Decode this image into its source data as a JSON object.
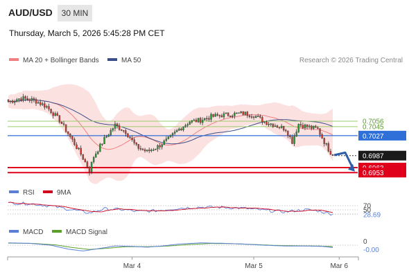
{
  "header": {
    "symbol": "AUD/USD",
    "interval": "30 MIN",
    "datetime": "Thursday, March 5, 2026 5:45:28 PM CET"
  },
  "colors": {
    "up": "#2a9d3a",
    "down": "#d63b2f",
    "ma20": "#f08080",
    "bollinger_fill": "#fcdcdc",
    "ma50": "#3a4f8a",
    "pivot": "#2e6fd8",
    "support": "#e0001b",
    "resistance": "#9acd6b",
    "price_box": "#1a1a1a",
    "arrow": "#2b5fa8",
    "rsi": "#5b7fd6",
    "rsi_ma": "#d0021b",
    "macd": "#5b7fd6",
    "macd_signal": "#5aa02c"
  },
  "chart_data": {
    "type": "candlestick",
    "credit": "Research © 2026 Trading Central",
    "legend": [
      "MA 20 + Bollinger Bands",
      "MA 50"
    ],
    "x_ticks": [
      {
        "label": "Mar 4",
        "index": 58
      },
      {
        "label": "Mar 5",
        "index": 115
      },
      {
        "label": "Mar 6",
        "index": 155
      }
    ],
    "ylim": [
      0.6945,
      0.7135
    ],
    "levels": [
      {
        "value": 0.7056,
        "label": "0.7056",
        "kind": "resistance"
      },
      {
        "value": 0.7045,
        "label": "0.7045",
        "kind": "resistance"
      },
      {
        "value": 0.7027,
        "label": "0.7027",
        "kind": "pivot"
      },
      {
        "value": 0.6963,
        "label": "0.6963",
        "kind": "support"
      },
      {
        "value": 0.6953,
        "label": "0.6953",
        "kind": "support"
      }
    ],
    "last_price": {
      "value": 0.6987,
      "label": "0.6987"
    },
    "close_anchors": [
      [
        0,
        0.7095
      ],
      [
        6,
        0.7102
      ],
      [
        12,
        0.7098
      ],
      [
        18,
        0.7085
      ],
      [
        24,
        0.7058
      ],
      [
        30,
        0.7018
      ],
      [
        34,
        0.699
      ],
      [
        38,
        0.6958
      ],
      [
        40,
        0.6985
      ],
      [
        45,
        0.702
      ],
      [
        50,
        0.7048
      ],
      [
        55,
        0.7035
      ],
      [
        60,
        0.7005
      ],
      [
        65,
        0.6995
      ],
      [
        70,
        0.7005
      ],
      [
        75,
        0.702
      ],
      [
        80,
        0.704
      ],
      [
        85,
        0.7055
      ],
      [
        90,
        0.7058
      ],
      [
        95,
        0.7065
      ],
      [
        100,
        0.7068
      ],
      [
        105,
        0.707
      ],
      [
        110,
        0.7072
      ],
      [
        115,
        0.7068
      ],
      [
        120,
        0.7055
      ],
      [
        125,
        0.7048
      ],
      [
        130,
        0.704
      ],
      [
        133,
        0.7015
      ],
      [
        136,
        0.705
      ],
      [
        140,
        0.7045
      ],
      [
        145,
        0.704
      ],
      [
        148,
        0.7015
      ],
      [
        150,
        0.7
      ],
      [
        152,
        0.6987
      ]
    ],
    "rsi": {
      "name": "RSI",
      "ma_name": "9MA",
      "levels": [
        70,
        50,
        30
      ],
      "value": 28.69,
      "ylim": [
        0,
        100
      ],
      "anchors": [
        [
          0,
          82
        ],
        [
          10,
          80
        ],
        [
          20,
          68
        ],
        [
          30,
          50
        ],
        [
          38,
          35
        ],
        [
          45,
          55
        ],
        [
          55,
          50
        ],
        [
          60,
          42
        ],
        [
          70,
          46
        ],
        [
          80,
          58
        ],
        [
          90,
          63
        ],
        [
          100,
          62
        ],
        [
          110,
          58
        ],
        [
          120,
          48
        ],
        [
          130,
          40
        ],
        [
          135,
          47
        ],
        [
          140,
          50
        ],
        [
          145,
          45
        ],
        [
          152,
          28.69
        ]
      ]
    },
    "macd": {
      "name": "MACD",
      "signal_name": "MACD Signal",
      "value": -0.0,
      "value_label": "-0.00",
      "zero_label": "0",
      "ylim": [
        -0.005,
        0.004
      ],
      "anchors": [
        [
          0,
          0.0012
        ],
        [
          10,
          0.001
        ],
        [
          20,
          0.0
        ],
        [
          28,
          -0.002
        ],
        [
          35,
          -0.003
        ],
        [
          42,
          -0.0018
        ],
        [
          50,
          -0.0004
        ],
        [
          58,
          -0.0006
        ],
        [
          65,
          -0.001
        ],
        [
          72,
          -0.0004
        ],
        [
          80,
          0.0006
        ],
        [
          90,
          0.0012
        ],
        [
          100,
          0.001
        ],
        [
          110,
          0.0006
        ],
        [
          120,
          0.0
        ],
        [
          130,
          -0.0004
        ],
        [
          140,
          -0.0004
        ],
        [
          147,
          -0.0006
        ],
        [
          152,
          -0.0012
        ]
      ],
      "signal_anchors": [
        [
          0,
          0.0011
        ],
        [
          12,
          0.0009
        ],
        [
          22,
          0.0002
        ],
        [
          30,
          -0.0012
        ],
        [
          38,
          -0.0022
        ],
        [
          46,
          -0.0016
        ],
        [
          55,
          -0.0008
        ],
        [
          65,
          -0.0008
        ],
        [
          75,
          -0.0004
        ],
        [
          85,
          0.0004
        ],
        [
          95,
          0.0009
        ],
        [
          105,
          0.0008
        ],
        [
          115,
          0.0004
        ],
        [
          125,
          -0.0001
        ],
        [
          135,
          -0.0003
        ],
        [
          145,
          -0.0004
        ],
        [
          152,
          -0.0007
        ]
      ]
    }
  }
}
